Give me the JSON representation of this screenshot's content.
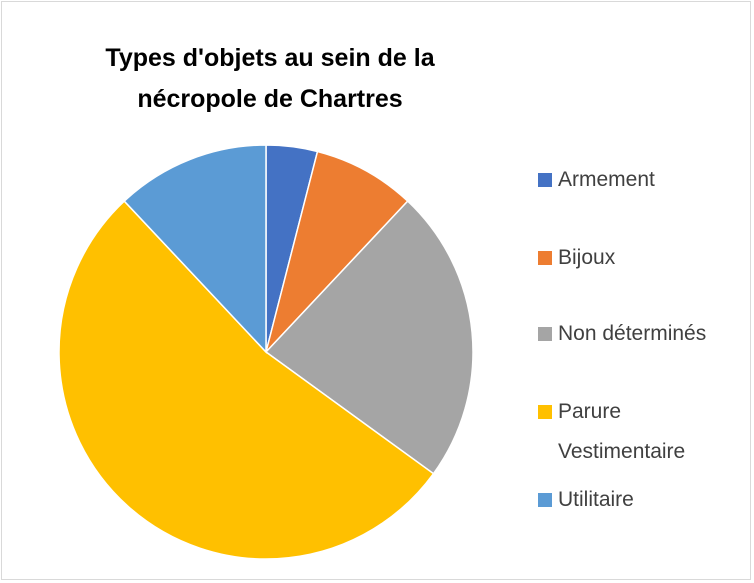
{
  "chart_data": {
    "type": "pie",
    "title": "Types d'objets au sein de la nécropole de Chartres",
    "categories": [
      "Armement",
      "Bijoux",
      "Non déterminés",
      "Parure Vestimentaire",
      "Utilitaire"
    ],
    "values": [
      4,
      8,
      23,
      53,
      12
    ],
    "colors": [
      "#4472c4",
      "#ed7d31",
      "#a5a5a5",
      "#ffc000",
      "#5b9bd5"
    ],
    "legend": "right"
  }
}
